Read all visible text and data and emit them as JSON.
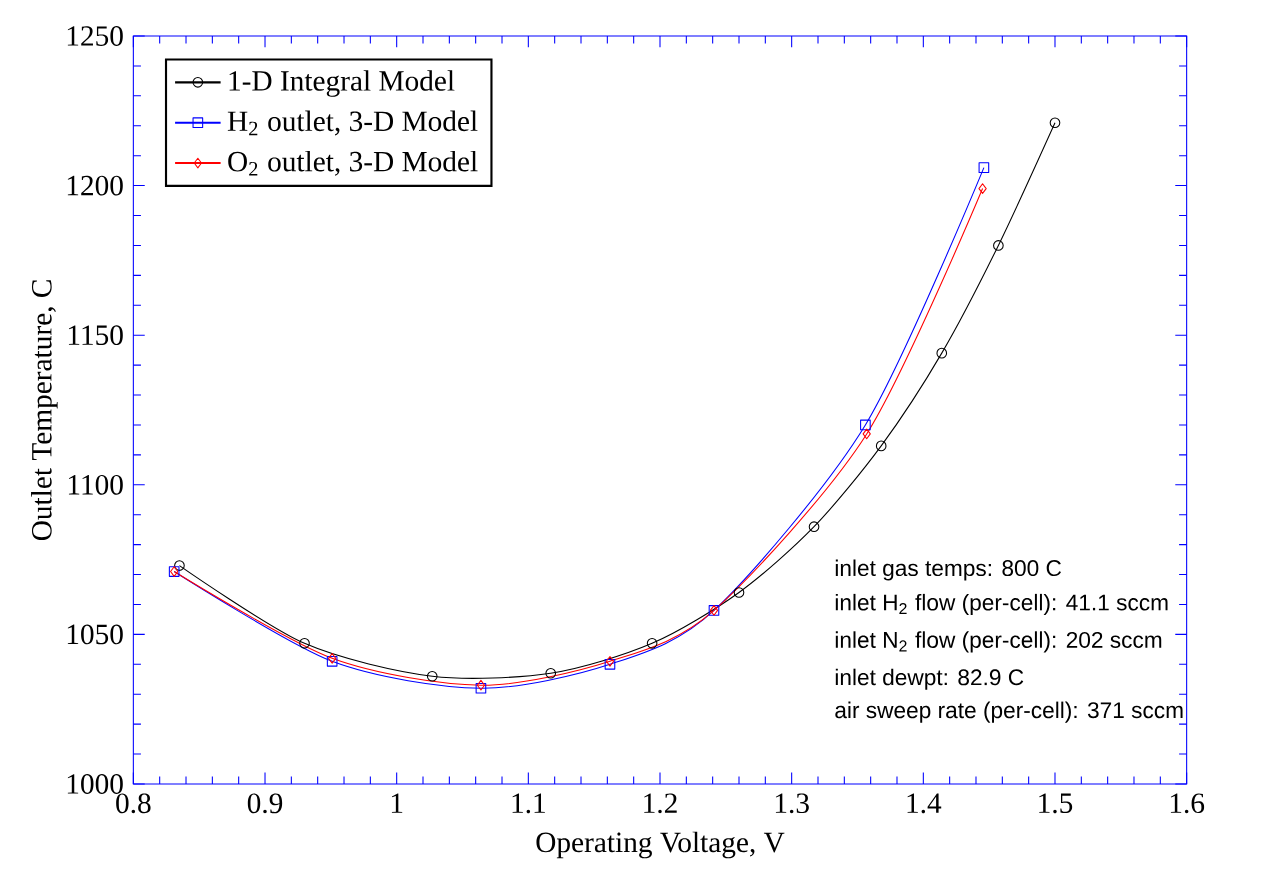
{
  "chart_data": {
    "type": "line",
    "xlabel": "Operating Voltage, V",
    "ylabel": "Outlet Temperature, C",
    "xlim": [
      0.8,
      1.6
    ],
    "xticks": [
      0.8,
      0.9,
      1,
      1.1,
      1.2,
      1.3,
      1.4,
      1.5,
      1.6
    ],
    "ylim": [
      1000,
      1250
    ],
    "yticks": [
      1000,
      1050,
      1100,
      1150,
      1200,
      1250
    ],
    "legend": "top left",
    "series": [
      {
        "name": "1-D Integral Model",
        "color": "#000000",
        "marker": "circle",
        "x": [
          0.835,
          0.93,
          1.027,
          1.117,
          1.194,
          1.26,
          1.317,
          1.368,
          1.414,
          1.457,
          1.5
        ],
        "values": [
          1073,
          1047,
          1036,
          1037,
          1047,
          1064,
          1086,
          1113,
          1144,
          1180,
          1221
        ]
      },
      {
        "name": "H$_{2}$ outlet, 3-D Model",
        "color": "#0000ff",
        "marker": "square",
        "x": [
          0.831,
          0.951,
          1.064,
          1.162,
          1.241,
          1.356,
          1.446
        ],
        "values": [
          1071,
          1041,
          1032,
          1040,
          1058,
          1120,
          1206
        ]
      },
      {
        "name": "O$_{2}$ outlet, 3-D Model",
        "color": "#ff0000",
        "marker": "diamond",
        "x": [
          0.831,
          0.951,
          1.064,
          1.162,
          1.241,
          1.357,
          1.445
        ],
        "values": [
          1071,
          1042,
          1033,
          1041,
          1058,
          1117,
          1199
        ]
      }
    ],
    "annotations": [
      "inlet gas temps:  800 C",
      "inlet H$_{2}$ flow (per-cell): 41.1 sccm",
      "inlet N$_{2}$ flow (per-cell): 202 sccm",
      "inlet dewpt: 82.9 C",
      "air sweep rate (per-cell): 371 sccm"
    ]
  }
}
